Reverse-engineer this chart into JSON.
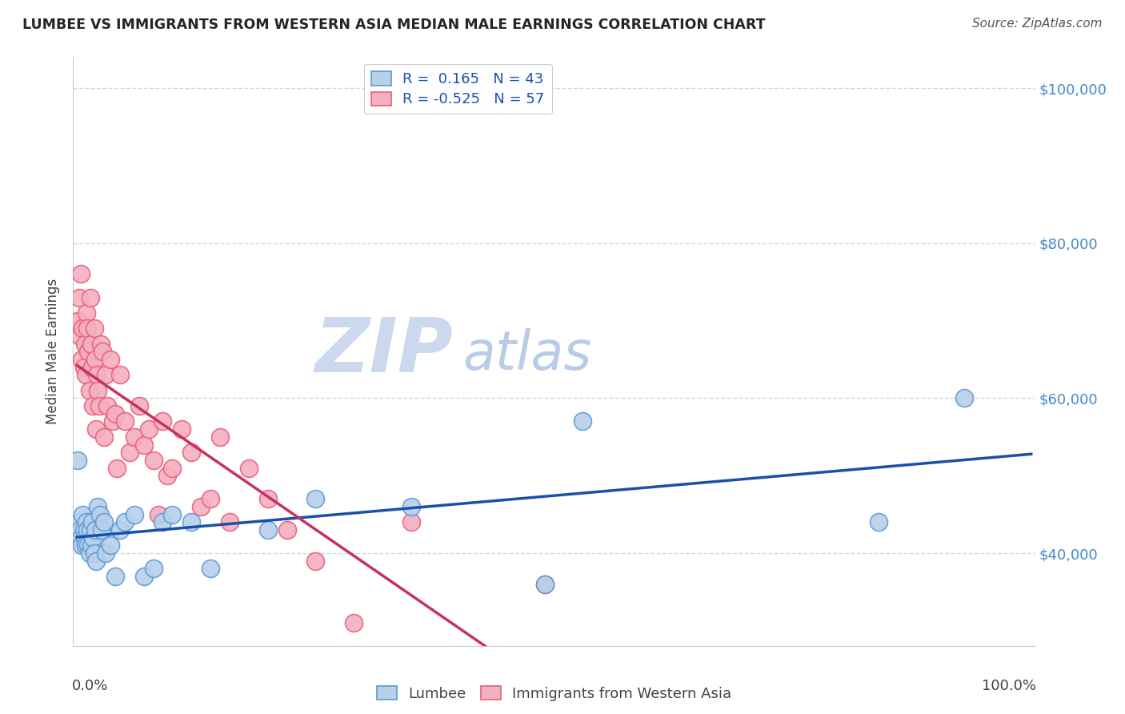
{
  "title": "LUMBEE VS IMMIGRANTS FROM WESTERN ASIA MEDIAN MALE EARNINGS CORRELATION CHART",
  "source": "Source: ZipAtlas.com",
  "ylabel": "Median Male Earnings",
  "y_tick_labels": [
    "$40,000",
    "$60,000",
    "$80,000",
    "$100,000"
  ],
  "y_tick_values": [
    40000,
    60000,
    80000,
    100000
  ],
  "y_min": 28000,
  "y_max": 104000,
  "x_min": -0.004,
  "x_max": 1.004,
  "lumbee_color": "#b8d0ea",
  "immigrants_color": "#f4afc0",
  "lumbee_edge_color": "#5b9bd5",
  "immigrants_edge_color": "#e8607a",
  "lumbee_line_color": "#1a4faa",
  "immigrants_line_color": "#c83060",
  "watermark_zip_color": "#ccd8ee",
  "watermark_atlas_color": "#b8cce8",
  "title_color": "#252525",
  "source_color": "#555555",
  "axis_label_color": "#404040",
  "right_axis_label_color": "#4488cc",
  "grid_color": "#d0d8e8",
  "legend_text_color": "#1a50bb",
  "bottom_legend_text_color": "#444444",
  "lumbee_x": [
    0.001,
    0.002,
    0.003,
    0.004,
    0.005,
    0.006,
    0.007,
    0.008,
    0.009,
    0.01,
    0.011,
    0.012,
    0.013,
    0.014,
    0.015,
    0.016,
    0.017,
    0.018,
    0.019,
    0.02,
    0.022,
    0.024,
    0.026,
    0.028,
    0.03,
    0.035,
    0.04,
    0.045,
    0.05,
    0.06,
    0.07,
    0.08,
    0.09,
    0.1,
    0.12,
    0.14,
    0.2,
    0.25,
    0.35,
    0.49,
    0.53,
    0.84,
    0.93
  ],
  "lumbee_y": [
    52000,
    44000,
    43000,
    42000,
    41000,
    45000,
    43000,
    42000,
    41000,
    44000,
    43000,
    41000,
    40000,
    43000,
    41000,
    44000,
    42000,
    40000,
    43000,
    39000,
    46000,
    45000,
    43000,
    44000,
    40000,
    41000,
    37000,
    43000,
    44000,
    45000,
    37000,
    38000,
    44000,
    45000,
    44000,
    38000,
    43000,
    47000,
    46000,
    36000,
    57000,
    44000,
    60000
  ],
  "immigrants_x": [
    0.001,
    0.002,
    0.003,
    0.004,
    0.005,
    0.006,
    0.007,
    0.008,
    0.009,
    0.01,
    0.011,
    0.012,
    0.013,
    0.014,
    0.015,
    0.016,
    0.017,
    0.018,
    0.019,
    0.02,
    0.021,
    0.022,
    0.023,
    0.025,
    0.027,
    0.028,
    0.03,
    0.032,
    0.035,
    0.038,
    0.04,
    0.042,
    0.045,
    0.05,
    0.055,
    0.06,
    0.065,
    0.07,
    0.075,
    0.08,
    0.085,
    0.09,
    0.095,
    0.1,
    0.11,
    0.12,
    0.13,
    0.14,
    0.15,
    0.16,
    0.18,
    0.2,
    0.22,
    0.25,
    0.29,
    0.35,
    0.49
  ],
  "immigrants_y": [
    70000,
    73000,
    68000,
    76000,
    65000,
    69000,
    64000,
    67000,
    63000,
    71000,
    69000,
    66000,
    61000,
    73000,
    67000,
    64000,
    59000,
    69000,
    65000,
    56000,
    63000,
    61000,
    59000,
    67000,
    66000,
    55000,
    63000,
    59000,
    65000,
    57000,
    58000,
    51000,
    63000,
    57000,
    53000,
    55000,
    59000,
    54000,
    56000,
    52000,
    45000,
    57000,
    50000,
    51000,
    56000,
    53000,
    46000,
    47000,
    55000,
    44000,
    51000,
    47000,
    43000,
    39000,
    31000,
    44000,
    36000
  ]
}
